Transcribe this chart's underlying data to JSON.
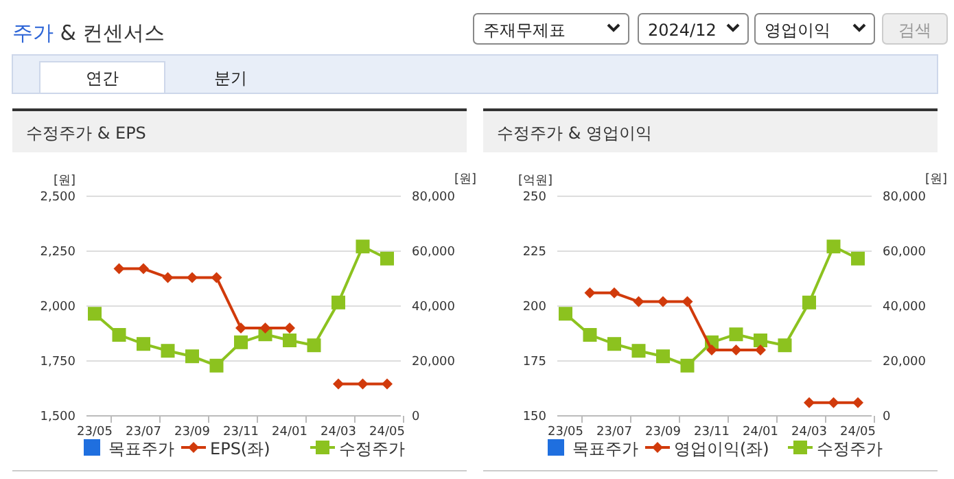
{
  "chart_data": [
    {
      "type": "other",
      "title": "주가 & 컨센서스",
      "annotations": [
        "주재무제표",
        "2024/12",
        "영업이익",
        "검색",
        "연간",
        "분기"
      ]
    },
    {
      "type": "line",
      "title": "수정주가 & EPS",
      "ylabel": "[원]",
      "y2label": "[원]",
      "categories": [
        "23/05",
        null,
        "23/07",
        null,
        "23/09",
        null,
        "23/11",
        null,
        "24/01",
        null,
        "24/03",
        null,
        "24/05"
      ],
      "ylim": [
        1500,
        2500
      ],
      "yticks": [
        {
          "value": 1500,
          "label": "1,500"
        },
        {
          "value": 1750,
          "label": "1,750"
        },
        {
          "value": 2000,
          "label": "2,000"
        },
        {
          "value": 2250,
          "label": "2,250"
        },
        {
          "value": 2500,
          "label": "2,500"
        }
      ],
      "y2lim": [
        0,
        80000
      ],
      "y2ticks": [
        0,
        {
          "value": 20000,
          "label": "20,000"
        },
        {
          "value": 40000,
          "label": "40,000"
        },
        {
          "value": 60000,
          "label": "60,000"
        },
        {
          "value": 80000,
          "label": "80,000"
        }
      ],
      "grid": "y",
      "legend": "bottom",
      "series": [
        {
          "name": "목표주가",
          "color": "#1f6fdf",
          "marker": "square",
          "values": [
            null,
            null,
            null,
            null,
            null,
            null,
            null,
            null,
            null,
            null,
            null,
            null,
            null
          ]
        },
        {
          "name": "EPS(좌)",
          "color": "#d13a0b",
          "marker": "diamond",
          "values": [
            null,
            2170,
            2170,
            2130,
            2130,
            2130,
            1900,
            1900,
            1900,
            null,
            1645,
            1645,
            1645
          ]
        },
        {
          "name": "수정주가",
          "color": "#8cc21f",
          "marker": "square",
          "axis": "y2",
          "values": [
            37200,
            29500,
            26200,
            23700,
            21700,
            18300,
            26800,
            29700,
            27500,
            25700,
            41300,
            61700,
            57300
          ]
        }
      ]
    },
    {
      "type": "line",
      "title": "수정주가 & 영업이익",
      "ylabel": "[억원]",
      "y2label": "[원]",
      "categories": [
        "23/05",
        null,
        "23/07",
        null,
        "23/09",
        null,
        "23/11",
        null,
        "24/01",
        null,
        "24/03",
        null,
        "24/05"
      ],
      "ylim": [
        150,
        250
      ],
      "yticks": [
        150,
        175,
        200,
        225,
        250
      ],
      "y2lim": [
        0,
        80000
      ],
      "y2ticks": [
        0,
        {
          "value": 20000,
          "label": "20,000"
        },
        {
          "value": 40000,
          "label": "40,000"
        },
        {
          "value": 60000,
          "label": "60,000"
        },
        {
          "value": 80000,
          "label": "80,000"
        }
      ],
      "grid": "y",
      "legend": "bottom",
      "series": [
        {
          "name": "목표주가",
          "color": "#1f6fdf",
          "marker": "square",
          "values": [
            null,
            null,
            null,
            null,
            null,
            null,
            null,
            null,
            null,
            null,
            null,
            null,
            null
          ]
        },
        {
          "name": "영업이익(좌)",
          "color": "#d13a0b",
          "marker": "diamond",
          "values": [
            null,
            206,
            206,
            202,
            202,
            202,
            180,
            180,
            180,
            null,
            156,
            156,
            156
          ]
        },
        {
          "name": "수정주가",
          "color": "#8cc21f",
          "marker": "square",
          "axis": "y2",
          "values": [
            37200,
            29500,
            26200,
            23700,
            21700,
            18300,
            26800,
            29700,
            27500,
            25700,
            41300,
            61700,
            57300
          ]
        }
      ]
    }
  ]
}
